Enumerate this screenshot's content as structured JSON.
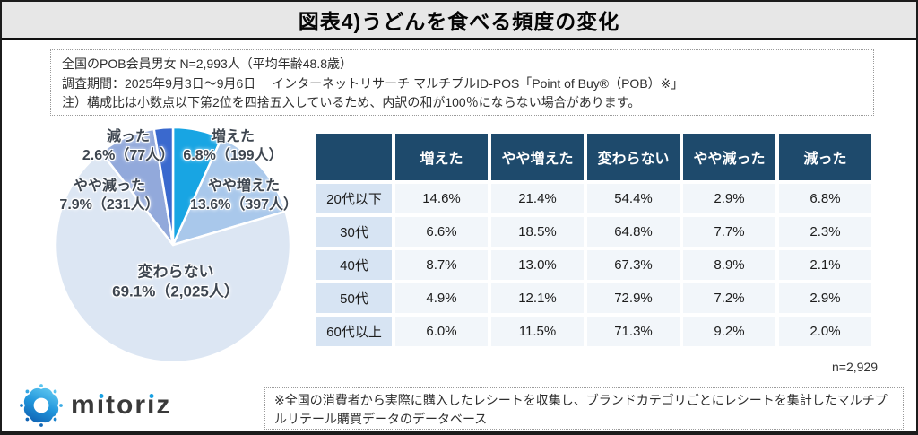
{
  "title": "図表4)うどんを食べる頻度の変化",
  "info_box": {
    "line1": "全国のPOB会員男女 N=2,993人（平均年齢48.8歳）",
    "line2": "調査期間：2025年9月3日～9月6日　 インターネットリサーチ マルチプルID-POS「Point of Buy®（POB）※」",
    "line3": "注）構成比は小数点以下第2位を四捨五入しているため、内訳の和が100％にならない場合があります。"
  },
  "pie": {
    "overlay_labels": [
      {
        "name": "増えた",
        "detail": "6.8%（199人）"
      },
      {
        "name": "やや増えた",
        "detail": "13.6%（397人）"
      },
      {
        "name": "変わらない",
        "detail": "69.1%（2,025人）"
      },
      {
        "name": "やや減った",
        "detail": "7.9%（231人）"
      },
      {
        "name": "減った",
        "detail": "2.6%（77人）"
      }
    ]
  },
  "table_note": "n=2,929",
  "footer": {
    "logo_text": "mitoriz",
    "note": "※全国の消費者から実際に購入したレシートを収集し、ブランドカテゴリごとにレシートを集計したマルチプルリテール購買データのデータベース"
  },
  "colors": {
    "table_header_bg": "#1e4a6c",
    "row_label_bg": "#d7e4f3",
    "cell_bg": "#f2f6fa",
    "logo_blue": "#18a0e2"
  },
  "chart_data": [
    {
      "type": "pie",
      "title": "うどんを食べる頻度の変化",
      "labels": [
        "増えた",
        "やや増えた",
        "変わらない",
        "やや減った",
        "減った"
      ],
      "values": [
        6.8,
        13.6,
        69.1,
        7.9,
        2.6
      ],
      "counts": [
        199,
        397,
        2025,
        231,
        77
      ],
      "colors": [
        "#18a5e3",
        "#a9c8eb",
        "#dce6f3",
        "#92a9db",
        "#3a69ce"
      ],
      "start_angle_deg": 0,
      "direction": "clockwise",
      "unit": "%"
    },
    {
      "type": "table",
      "columns": [
        "",
        "増えた",
        "やや増えた",
        "変わらない",
        "やや減った",
        "減った"
      ],
      "unit": "%",
      "rows": [
        {
          "label": "20代以下",
          "values": [
            14.6,
            21.4,
            54.4,
            2.9,
            6.8
          ]
        },
        {
          "label": "30代",
          "values": [
            6.6,
            18.5,
            64.8,
            7.7,
            2.3
          ]
        },
        {
          "label": "40代",
          "values": [
            8.7,
            13.0,
            67.3,
            8.9,
            2.1
          ]
        },
        {
          "label": "50代",
          "values": [
            4.9,
            12.1,
            72.9,
            7.2,
            2.9
          ]
        },
        {
          "label": "60代以上",
          "values": [
            6.0,
            11.5,
            71.3,
            9.2,
            2.0
          ]
        }
      ],
      "note": "n=2,929"
    }
  ]
}
